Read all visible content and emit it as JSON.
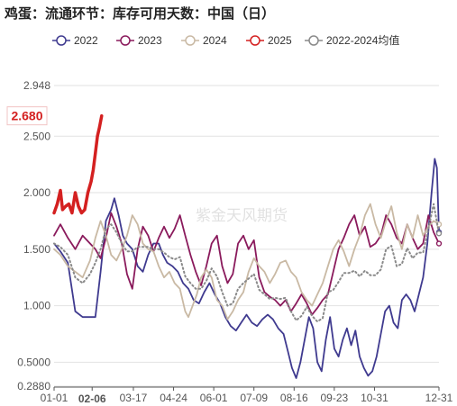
{
  "title": "鸡蛋：流通环节：库存可用天数：中国（日）",
  "watermark": "紫金天风期货",
  "chart_data": {
    "type": "line",
    "title": "鸡蛋：流通环节：库存可用天数：中国（日）",
    "xlabel": "",
    "ylabel": "",
    "x_ticks": [
      "01-01",
      "02-06",
      "03-17",
      "04-24",
      "06-01",
      "07-09",
      "08-16",
      "09-23",
      "10-31",
      "12-31"
    ],
    "highlight_x": "02-06",
    "y_ticks": [
      0.288,
      0.5,
      1.0,
      1.5,
      2.0,
      2.5,
      2.948
    ],
    "y_tick_labels": [
      "0.2880",
      "0.5000",
      "1.000",
      "1.500",
      "2.000",
      "2.500",
      "2.948"
    ],
    "ylim": [
      0.288,
      2.948
    ],
    "grid": true,
    "legend_position": "top",
    "last_value_label": "2.680",
    "series": [
      {
        "name": "2022",
        "color": "#3f3a8f",
        "style": "solid",
        "points": [
          [
            1,
            1.55
          ],
          [
            7,
            1.48
          ],
          [
            14,
            1.38
          ],
          [
            21,
            0.95
          ],
          [
            28,
            0.9
          ],
          [
            35,
            0.9
          ],
          [
            40,
            0.9
          ],
          [
            45,
            1.3
          ],
          [
            50,
            1.75
          ],
          [
            55,
            1.85
          ],
          [
            58,
            1.95
          ],
          [
            62,
            1.8
          ],
          [
            66,
            1.62
          ],
          [
            70,
            1.55
          ],
          [
            75,
            1.5
          ],
          [
            80,
            1.35
          ],
          [
            85,
            1.3
          ],
          [
            90,
            1.45
          ],
          [
            95,
            1.55
          ],
          [
            100,
            1.55
          ],
          [
            104,
            1.45
          ],
          [
            108,
            1.38
          ],
          [
            113,
            1.35
          ],
          [
            118,
            1.3
          ],
          [
            123,
            1.2
          ],
          [
            128,
            1.15
          ],
          [
            133,
            1.05
          ],
          [
            138,
            1.02
          ],
          [
            143,
            1.12
          ],
          [
            148,
            1.2
          ],
          [
            153,
            1.1
          ],
          [
            158,
            1.02
          ],
          [
            163,
            0.9
          ],
          [
            168,
            0.82
          ],
          [
            173,
            0.78
          ],
          [
            178,
            0.85
          ],
          [
            183,
            0.92
          ],
          [
            188,
            0.85
          ],
          [
            193,
            0.82
          ],
          [
            198,
            0.88
          ],
          [
            203,
            0.92
          ],
          [
            208,
            0.88
          ],
          [
            213,
            0.8
          ],
          [
            218,
            0.75
          ],
          [
            222,
            0.6
          ],
          [
            226,
            0.45
          ],
          [
            230,
            0.36
          ],
          [
            234,
            0.5
          ],
          [
            238,
            0.7
          ],
          [
            242,
            0.9
          ],
          [
            246,
            0.8
          ],
          [
            250,
            0.5
          ],
          [
            254,
            0.42
          ],
          [
            258,
            0.7
          ],
          [
            262,
            0.9
          ],
          [
            266,
            0.62
          ],
          [
            270,
            0.55
          ],
          [
            274,
            0.7
          ],
          [
            278,
            0.8
          ],
          [
            282,
            0.65
          ],
          [
            286,
            0.78
          ],
          [
            290,
            0.55
          ],
          [
            294,
            0.45
          ],
          [
            298,
            0.38
          ],
          [
            302,
            0.42
          ],
          [
            306,
            0.55
          ],
          [
            310,
            0.75
          ],
          [
            314,
            0.95
          ],
          [
            318,
            1.0
          ],
          [
            322,
            0.85
          ],
          [
            326,
            0.8
          ],
          [
            330,
            1.05
          ],
          [
            334,
            1.1
          ],
          [
            338,
            1.05
          ],
          [
            342,
            0.95
          ],
          [
            346,
            1.1
          ],
          [
            350,
            1.25
          ],
          [
            354,
            1.55
          ],
          [
            358,
            2.0
          ],
          [
            361,
            2.3
          ],
          [
            363,
            2.22
          ],
          [
            365,
            1.65
          ]
        ]
      },
      {
        "name": "2023",
        "color": "#8a1a5c",
        "style": "solid",
        "points": [
          [
            1,
            1.62
          ],
          [
            7,
            1.72
          ],
          [
            14,
            1.6
          ],
          [
            21,
            1.5
          ],
          [
            28,
            1.62
          ],
          [
            35,
            1.55
          ],
          [
            40,
            1.5
          ],
          [
            45,
            1.42
          ],
          [
            50,
            1.6
          ],
          [
            55,
            1.82
          ],
          [
            60,
            1.7
          ],
          [
            65,
            1.55
          ],
          [
            70,
            1.28
          ],
          [
            75,
            1.15
          ],
          [
            80,
            1.5
          ],
          [
            85,
            1.7
          ],
          [
            90,
            1.62
          ],
          [
            95,
            1.48
          ],
          [
            100,
            1.6
          ],
          [
            105,
            1.7
          ],
          [
            110,
            1.6
          ],
          [
            115,
            1.68
          ],
          [
            120,
            1.8
          ],
          [
            125,
            1.62
          ],
          [
            130,
            1.45
          ],
          [
            135,
            1.3
          ],
          [
            140,
            1.18
          ],
          [
            145,
            1.35
          ],
          [
            150,
            1.55
          ],
          [
            155,
            1.62
          ],
          [
            160,
            1.35
          ],
          [
            165,
            1.2
          ],
          [
            170,
            1.28
          ],
          [
            175,
            1.55
          ],
          [
            180,
            1.62
          ],
          [
            185,
            1.5
          ],
          [
            190,
            1.58
          ],
          [
            195,
            1.25
          ],
          [
            200,
            1.12
          ],
          [
            205,
            1.08
          ],
          [
            210,
            1.05
          ],
          [
            215,
            1.0
          ],
          [
            220,
            1.05
          ],
          [
            225,
            0.95
          ],
          [
            230,
            1.02
          ],
          [
            235,
            1.1
          ],
          [
            240,
            1.02
          ],
          [
            245,
            0.92
          ],
          [
            250,
            0.98
          ],
          [
            255,
            1.05
          ],
          [
            260,
            1.1
          ],
          [
            265,
            1.3
          ],
          [
            270,
            1.5
          ],
          [
            275,
            1.6
          ],
          [
            280,
            1.72
          ],
          [
            285,
            1.8
          ],
          [
            290,
            1.62
          ],
          [
            295,
            1.7
          ],
          [
            300,
            1.52
          ],
          [
            305,
            1.55
          ],
          [
            310,
            1.62
          ],
          [
            315,
            1.8
          ],
          [
            320,
            1.72
          ],
          [
            325,
            1.6
          ],
          [
            330,
            1.55
          ],
          [
            335,
            1.72
          ],
          [
            340,
            1.6
          ],
          [
            345,
            1.5
          ],
          [
            350,
            1.55
          ],
          [
            355,
            1.8
          ],
          [
            360,
            1.65
          ],
          [
            365,
            1.55
          ]
        ]
      },
      {
        "name": "2024",
        "color": "#c9b9a4",
        "style": "solid",
        "points": [
          [
            1,
            1.5
          ],
          [
            7,
            1.45
          ],
          [
            14,
            1.35
          ],
          [
            21,
            1.3
          ],
          [
            28,
            1.25
          ],
          [
            35,
            1.4
          ],
          [
            40,
            1.6
          ],
          [
            45,
            1.75
          ],
          [
            50,
            1.62
          ],
          [
            55,
            1.45
          ],
          [
            60,
            1.4
          ],
          [
            65,
            1.5
          ],
          [
            70,
            1.62
          ],
          [
            75,
            1.8
          ],
          [
            80,
            1.72
          ],
          [
            85,
            1.55
          ],
          [
            90,
            1.5
          ],
          [
            95,
            1.48
          ],
          [
            100,
            1.35
          ],
          [
            105,
            1.25
          ],
          [
            110,
            1.3
          ],
          [
            115,
            1.2
          ],
          [
            120,
            1.15
          ],
          [
            125,
            0.95
          ],
          [
            128,
            0.9
          ],
          [
            132,
            1.0
          ],
          [
            136,
            1.1
          ],
          [
            140,
            1.25
          ],
          [
            145,
            1.32
          ],
          [
            150,
            1.25
          ],
          [
            155,
            1.05
          ],
          [
            160,
            1.0
          ],
          [
            165,
            0.88
          ],
          [
            170,
            0.95
          ],
          [
            175,
            1.05
          ],
          [
            180,
            1.12
          ],
          [
            185,
            1.3
          ],
          [
            190,
            1.42
          ],
          [
            195,
            1.35
          ],
          [
            200,
            1.3
          ],
          [
            205,
            1.2
          ],
          [
            210,
            1.28
          ],
          [
            215,
            1.38
          ],
          [
            220,
            1.4
          ],
          [
            225,
            1.3
          ],
          [
            230,
            1.25
          ],
          [
            235,
            1.12
          ],
          [
            240,
            1.05
          ],
          [
            245,
            1.0
          ],
          [
            250,
            1.1
          ],
          [
            255,
            1.2
          ],
          [
            260,
            1.35
          ],
          [
            265,
            1.5
          ],
          [
            270,
            1.58
          ],
          [
            275,
            1.48
          ],
          [
            280,
            1.35
          ],
          [
            285,
            1.5
          ],
          [
            290,
            1.62
          ],
          [
            295,
            1.8
          ],
          [
            300,
            1.9
          ],
          [
            305,
            1.72
          ],
          [
            310,
            1.6
          ],
          [
            315,
            1.75
          ],
          [
            320,
            1.88
          ],
          [
            325,
            1.65
          ],
          [
            330,
            1.5
          ],
          [
            335,
            1.72
          ],
          [
            340,
            1.6
          ],
          [
            345,
            1.8
          ],
          [
            350,
            1.62
          ],
          [
            355,
            1.7
          ],
          [
            360,
            1.75
          ],
          [
            365,
            1.72
          ]
        ]
      },
      {
        "name": "2025",
        "color": "#d42020",
        "style": "bold",
        "points": [
          [
            1,
            1.82
          ],
          [
            4,
            1.9
          ],
          [
            7,
            2.02
          ],
          [
            9,
            1.85
          ],
          [
            12,
            1.88
          ],
          [
            15,
            1.9
          ],
          [
            18,
            1.82
          ],
          [
            21,
            2.0
          ],
          [
            24,
            1.88
          ],
          [
            27,
            1.82
          ],
          [
            30,
            1.85
          ],
          [
            33,
            2.0
          ],
          [
            36,
            2.1
          ],
          [
            38,
            2.2
          ],
          [
            40,
            2.35
          ],
          [
            42,
            2.5
          ],
          [
            44,
            2.58
          ],
          [
            46,
            2.68
          ]
        ]
      },
      {
        "name": "2022-2024均值",
        "color": "#8a8a8a",
        "style": "dotted",
        "points": [
          [
            1,
            1.55
          ],
          [
            7,
            1.52
          ],
          [
            14,
            1.45
          ],
          [
            21,
            1.25
          ],
          [
            28,
            1.2
          ],
          [
            35,
            1.28
          ],
          [
            40,
            1.38
          ],
          [
            45,
            1.5
          ],
          [
            50,
            1.68
          ],
          [
            55,
            1.72
          ],
          [
            60,
            1.65
          ],
          [
            65,
            1.55
          ],
          [
            70,
            1.48
          ],
          [
            75,
            1.48
          ],
          [
            80,
            1.52
          ],
          [
            85,
            1.52
          ],
          [
            90,
            1.52
          ],
          [
            95,
            1.5
          ],
          [
            100,
            1.5
          ],
          [
            105,
            1.47
          ],
          [
            110,
            1.43
          ],
          [
            115,
            1.41
          ],
          [
            120,
            1.43
          ],
          [
            125,
            1.26
          ],
          [
            130,
            1.2
          ],
          [
            135,
            1.15
          ],
          [
            140,
            1.15
          ],
          [
            145,
            1.22
          ],
          [
            150,
            1.33
          ],
          [
            155,
            1.26
          ],
          [
            160,
            1.12
          ],
          [
            165,
            1.0
          ],
          [
            170,
            1.02
          ],
          [
            175,
            1.15
          ],
          [
            180,
            1.2
          ],
          [
            185,
            1.24
          ],
          [
            190,
            1.28
          ],
          [
            195,
            1.14
          ],
          [
            200,
            1.1
          ],
          [
            205,
            1.06
          ],
          [
            210,
            1.07
          ],
          [
            215,
            1.06
          ],
          [
            220,
            1.07
          ],
          [
            225,
            0.95
          ],
          [
            230,
            0.87
          ],
          [
            235,
            0.91
          ],
          [
            240,
            0.99
          ],
          [
            245,
            0.91
          ],
          [
            250,
            0.86
          ],
          [
            255,
            0.89
          ],
          [
            260,
            1.12
          ],
          [
            265,
            1.14
          ],
          [
            270,
            1.21
          ],
          [
            275,
            1.29
          ],
          [
            280,
            1.29
          ],
          [
            285,
            1.31
          ],
          [
            290,
            1.26
          ],
          [
            295,
            1.31
          ],
          [
            300,
            1.27
          ],
          [
            305,
            1.27
          ],
          [
            310,
            1.32
          ],
          [
            315,
            1.5
          ],
          [
            320,
            1.53
          ],
          [
            325,
            1.35
          ],
          [
            330,
            1.37
          ],
          [
            335,
            1.51
          ],
          [
            340,
            1.42
          ],
          [
            345,
            1.47
          ],
          [
            350,
            1.47
          ],
          [
            355,
            1.68
          ],
          [
            360,
            1.9
          ],
          [
            365,
            1.64
          ]
        ]
      }
    ]
  }
}
